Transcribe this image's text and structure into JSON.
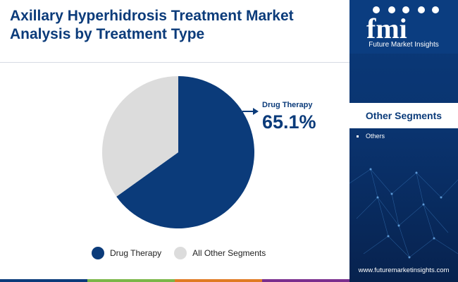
{
  "title": "Axillary Hyperhidrosis Treatment Market Analysis by Treatment Type",
  "chart_data": {
    "type": "pie",
    "categories": [
      "Drug Therapy",
      "All Other Segments"
    ],
    "values": [
      65.1,
      34.9
    ],
    "colors": [
      "#0b3b7a",
      "#dcdcdc"
    ],
    "title": "Axillary Hyperhidrosis Treatment Market Analysis by Treatment Type",
    "callout": {
      "label": "Drug Therapy",
      "value": "65.1%"
    },
    "legend": {
      "placement": "bottom",
      "entries": [
        "Drug Therapy",
        "All Other Segments"
      ]
    }
  },
  "sidebar": {
    "brand_name": "Future Market Insights",
    "segments_header": "Other Segments",
    "segments": [
      "Others"
    ],
    "website": "www.futuremarketinsights.com"
  },
  "colors": {
    "primary": "#0b3b7a",
    "secondary": "#dcdcdc",
    "bottom_bar": [
      "#0b3b7a",
      "#7ab648",
      "#e07b24",
      "#7a2e8e"
    ]
  },
  "icons": [
    "fmi-logo-icon",
    "callout-arrow-icon",
    "network-background-icon"
  ]
}
